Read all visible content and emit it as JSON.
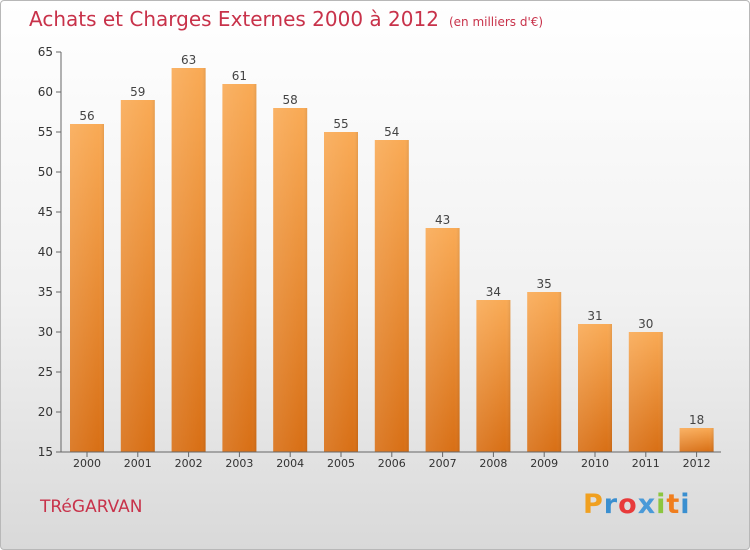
{
  "header": {
    "title": "Achats et Charges Externes 2000 à 2012",
    "subtitle": "(en milliers d'€)"
  },
  "footer": {
    "commune": "TRéGARVAN",
    "logo_letters": [
      "P",
      "r",
      "o",
      "x",
      "i",
      "t",
      "i"
    ],
    "logo_colors": [
      "#f0a020",
      "#3a8fd0",
      "#e83a3a",
      "#4a9ad8",
      "#8cc63f",
      "#f07e1e",
      "#3a8fd0"
    ]
  },
  "colors": {
    "bar_top": "#f9aa55",
    "bar_bottom": "#d86f15",
    "axis": "#666666",
    "title": "#c8324a"
  },
  "chart_data": {
    "type": "bar",
    "categories": [
      "2000",
      "2001",
      "2002",
      "2003",
      "2004",
      "2005",
      "2006",
      "2007",
      "2008",
      "2009",
      "2010",
      "2011",
      "2012"
    ],
    "values": [
      56,
      59,
      63,
      61,
      58,
      55,
      54,
      43,
      34,
      35,
      31,
      30,
      18
    ],
    "data_labels": [
      "56",
      "59",
      "63",
      "61",
      "58",
      "55",
      "54",
      "43",
      "34",
      "35",
      "31",
      "30",
      "18"
    ],
    "yticks": [
      "15",
      "20",
      "25",
      "30",
      "35",
      "40",
      "45",
      "50",
      "55",
      "60",
      "65"
    ],
    "ylim": [
      15,
      65
    ],
    "grid": false,
    "legend": "none"
  }
}
